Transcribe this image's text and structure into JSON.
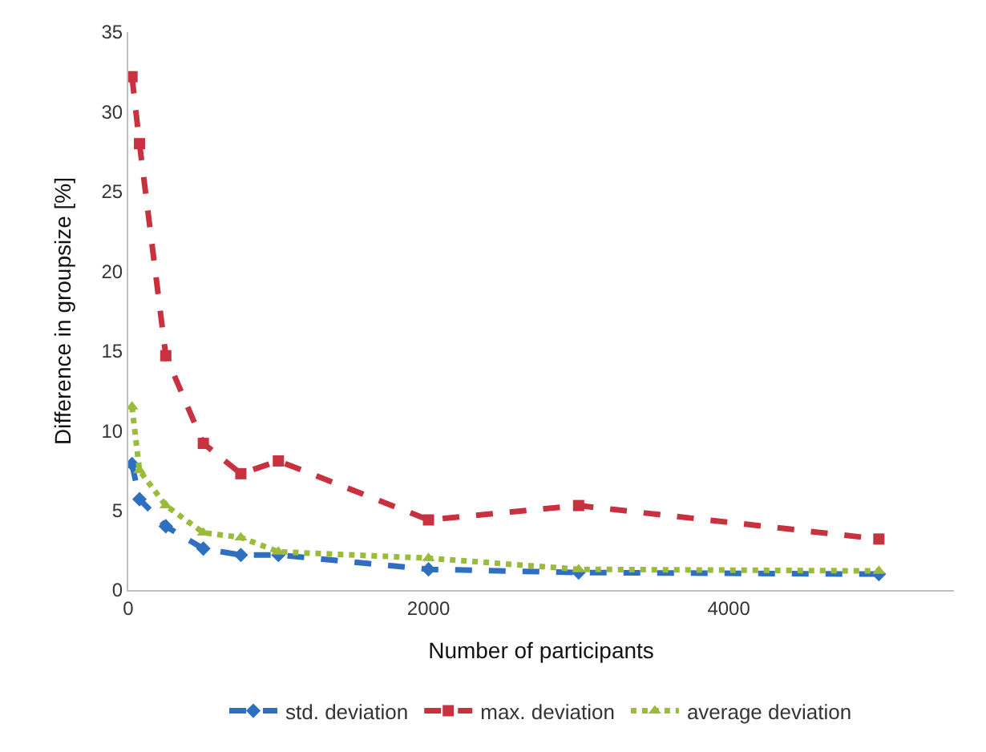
{
  "chart_data": {
    "type": "line",
    "xlabel": "Number of participants",
    "ylabel": "Difference in groupsize [%]",
    "x": [
      25,
      75,
      250,
      500,
      750,
      1000,
      2000,
      3000,
      5000
    ],
    "xlim": [
      0,
      5500
    ],
    "xticks": [
      0,
      2000,
      4000
    ],
    "ylim": [
      0,
      35
    ],
    "yticks": [
      0,
      5,
      10,
      15,
      20,
      25,
      30,
      35
    ],
    "legend": "bottom",
    "series": [
      {
        "name": "std. deviation",
        "color": "#2f6fbf",
        "marker": "diamond",
        "line_style": "dashed",
        "values": [
          7.9,
          5.7,
          4.0,
          2.6,
          2.2,
          2.2,
          1.3,
          1.1,
          1.0
        ]
      },
      {
        "name": "max. deviation",
        "color": "#c8313f",
        "marker": "square",
        "line_style": "dashed",
        "values": [
          32.2,
          28.0,
          14.7,
          9.2,
          7.3,
          8.1,
          4.4,
          5.3,
          3.2
        ]
      },
      {
        "name": "average deviation",
        "color": "#9bbb3b",
        "marker": "triangle",
        "line_style": "dotted",
        "values": [
          11.5,
          7.5,
          5.3,
          3.6,
          3.3,
          2.4,
          2.0,
          1.3,
          1.2
        ]
      }
    ]
  }
}
